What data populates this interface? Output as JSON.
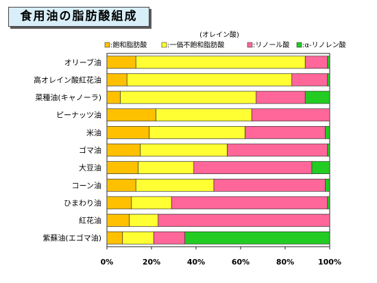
{
  "header": {
    "title": "食用油の脂肪酸組成"
  },
  "colors": {
    "saturated": "#ffc000",
    "monounsaturated": "#ffff33",
    "linoleic": "#ff6699",
    "alpha_linolenic": "#22cc22",
    "outline": "#333333"
  },
  "chart_data": {
    "type": "bar",
    "orientation": "horizontal",
    "stacked": true,
    "normalized": true,
    "title": "食用油の脂肪酸組成",
    "legend_note": "(オレイン酸)",
    "legend_position": "top",
    "categories": [
      "オリーブ油",
      "高オレイン酸紅花油",
      "菜種油(キャノーラ)",
      "ピーナッツ油",
      "米油",
      "ゴマ油",
      "大豆油",
      "コーン油",
      "ひまわり油",
      "紅花油",
      "紫蘇油(エゴマ油)"
    ],
    "series": [
      {
        "name": ":飽和脂肪酸",
        "values": [
          13,
          9,
          6,
          22,
          19,
          15,
          14,
          13,
          11,
          10,
          7
        ]
      },
      {
        "name": ":一価不飽和脂肪酸",
        "values": [
          76,
          74,
          61,
          43,
          43,
          39,
          25,
          35,
          18,
          13,
          14
        ]
      },
      {
        "name": ":リノール酸",
        "values": [
          10,
          16,
          22,
          35,
          36,
          45,
          53,
          50,
          70,
          77,
          14
        ]
      },
      {
        "name": ":α-リノレン酸",
        "values": [
          1,
          1,
          11,
          0,
          2,
          1,
          8,
          2,
          1,
          0,
          65
        ]
      }
    ],
    "xlim": [
      0,
      100
    ],
    "xticks": [
      "0%",
      "20%",
      "40%",
      "60%",
      "80%",
      "100%"
    ]
  }
}
